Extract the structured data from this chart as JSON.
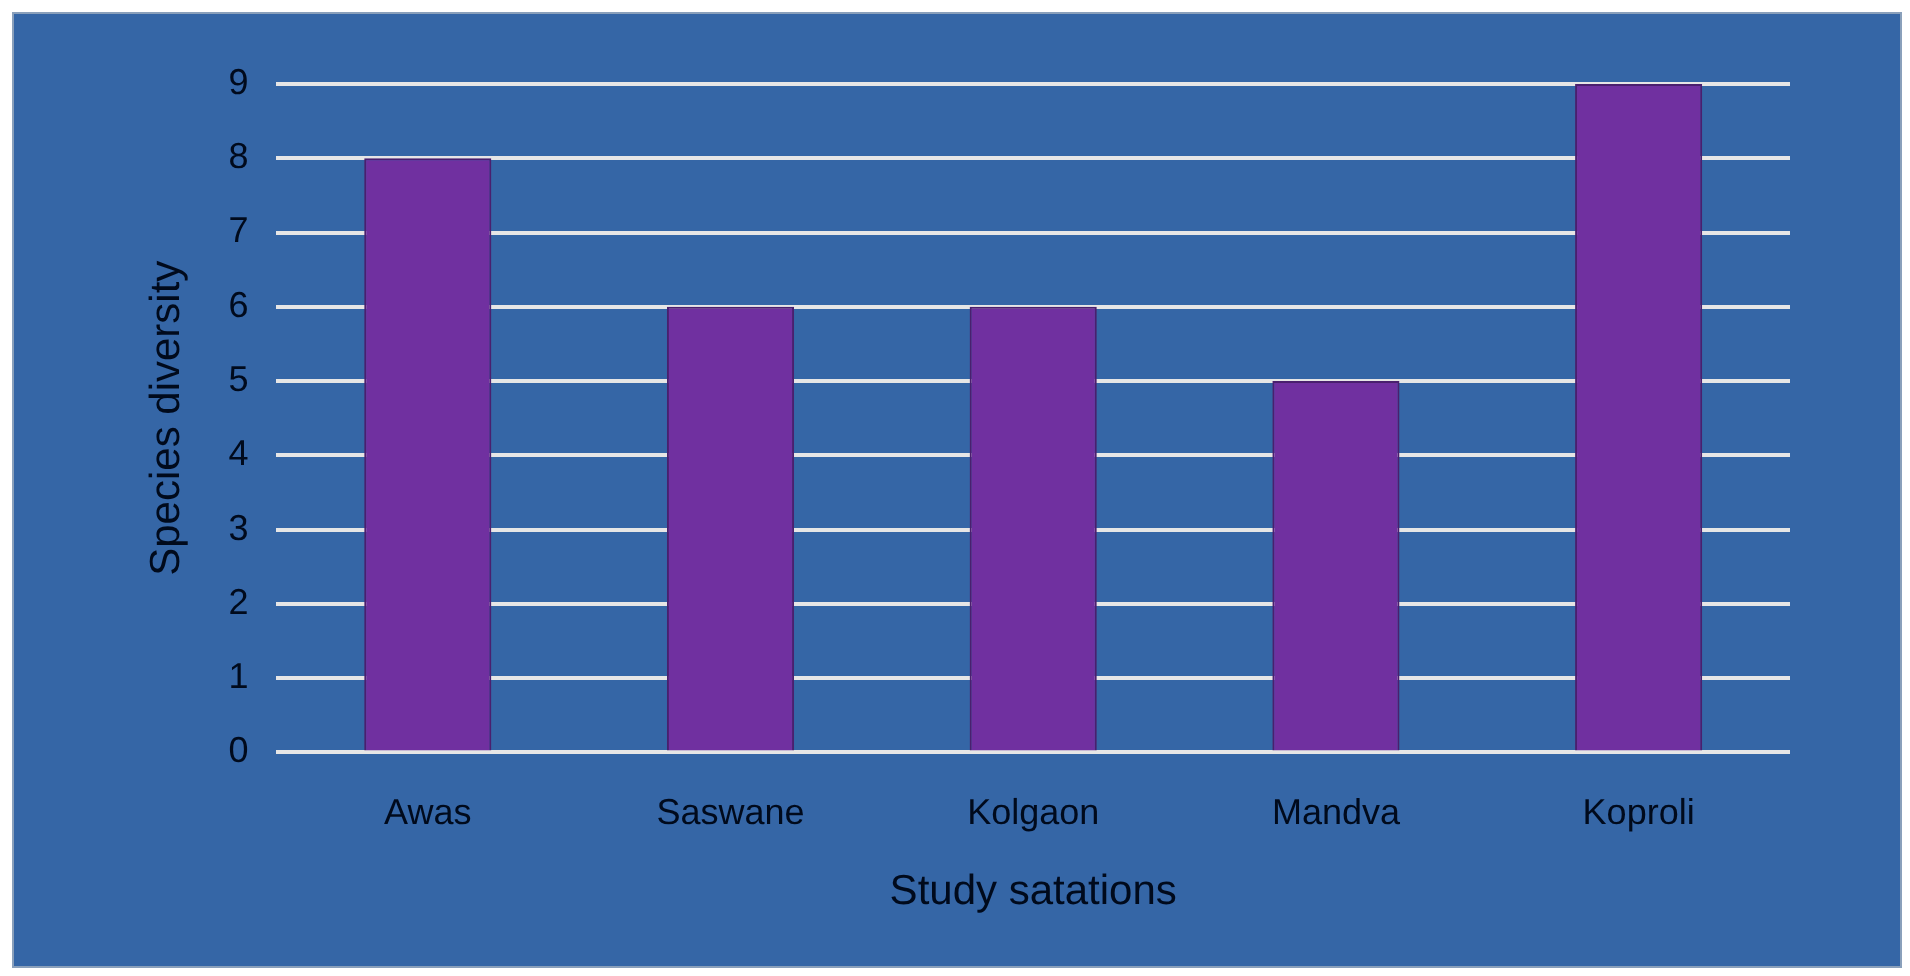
{
  "chart_data": {
    "type": "bar",
    "xlabel": "Study satations",
    "ylabel": "Species diversity",
    "categories": [
      "Awas",
      "Saswane",
      "Kolgaon",
      "Mandva",
      "Koproli"
    ],
    "values": [
      8,
      6,
      6,
      5,
      9
    ],
    "color": "#7030a0",
    "ylim": [
      0,
      9
    ],
    "yticks": [
      0,
      1,
      2,
      3,
      4,
      5,
      6,
      7,
      8,
      9
    ],
    "grid": "y",
    "legend": false
  }
}
